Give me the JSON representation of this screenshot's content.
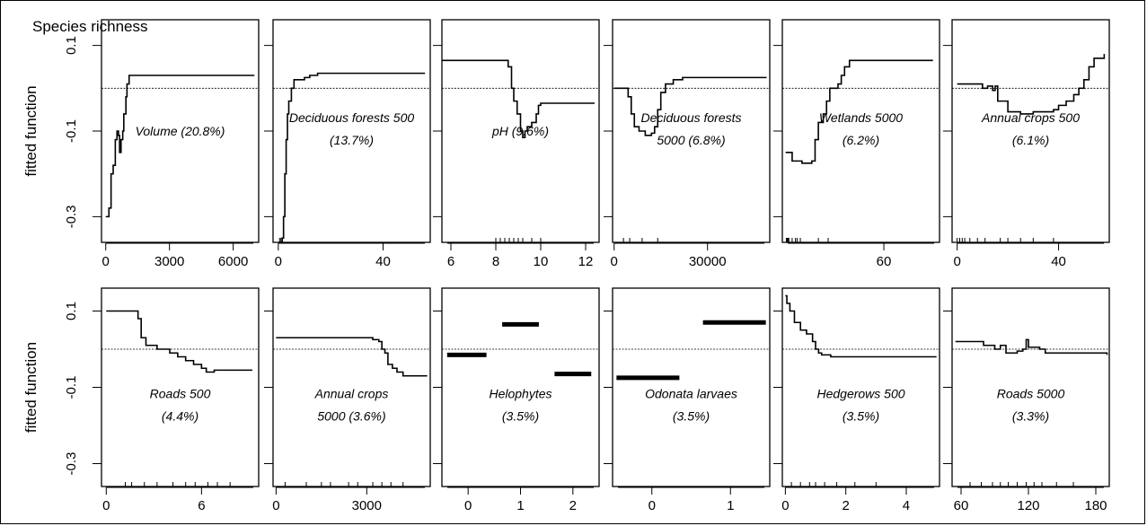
{
  "title": "Species richness",
  "chart_data": {
    "type": "line",
    "title": "Species richness",
    "ylabel": "fitted function",
    "ylim": [
      -0.36,
      0.16
    ],
    "yticks": [
      0.1,
      -0.1,
      -0.3
    ],
    "reference_line": 0,
    "panels": [
      {
        "label_lines": [
          "Volume (20.8%)"
        ],
        "xlim": [
          -200,
          7200
        ],
        "xticks": [
          0,
          3000,
          6000
        ],
        "line": [
          [
            0,
            -0.3
          ],
          [
            150,
            -0.28
          ],
          [
            250,
            -0.2
          ],
          [
            350,
            -0.18
          ],
          [
            450,
            -0.12
          ],
          [
            530,
            -0.1
          ],
          [
            600,
            -0.11
          ],
          [
            650,
            -0.15
          ],
          [
            720,
            -0.12
          ],
          [
            800,
            -0.1
          ],
          [
            850,
            -0.06
          ],
          [
            950,
            -0.02
          ],
          [
            1000,
            0.01
          ],
          [
            1100,
            0.03
          ],
          [
            2000,
            0.03
          ],
          [
            7000,
            0.03
          ]
        ],
        "rug": []
      },
      {
        "label_lines": [
          "Deciduous forests 500",
          "(13.7%)"
        ],
        "xlim": [
          -2,
          58
        ],
        "xticks": [
          0,
          40
        ],
        "line": [
          [
            0,
            -0.36
          ],
          [
            1,
            -0.36
          ],
          [
            1.5,
            -0.35
          ],
          [
            2,
            -0.3
          ],
          [
            2.5,
            -0.2
          ],
          [
            3,
            -0.12
          ],
          [
            3.5,
            -0.06
          ],
          [
            4,
            -0.03
          ],
          [
            5,
            0.0
          ],
          [
            6,
            0.02
          ],
          [
            8,
            0.02
          ],
          [
            10,
            0.025
          ],
          [
            12,
            0.03
          ],
          [
            15,
            0.035
          ],
          [
            56,
            0.035
          ]
        ],
        "rug": [
          0.5,
          1
        ]
      },
      {
        "label_lines": [
          "pH (9.6%)"
        ],
        "xlim": [
          5.6,
          12.6
        ],
        "xticks": [
          6,
          8,
          10,
          12
        ],
        "line": [
          [
            5.6,
            0.065
          ],
          [
            8.4,
            0.065
          ],
          [
            8.55,
            0.05
          ],
          [
            8.7,
            0.0
          ],
          [
            8.8,
            -0.03
          ],
          [
            8.95,
            -0.06
          ],
          [
            9.1,
            -0.1
          ],
          [
            9.2,
            -0.115
          ],
          [
            9.3,
            -0.1
          ],
          [
            9.4,
            -0.09
          ],
          [
            9.6,
            -0.08
          ],
          [
            9.8,
            -0.06
          ],
          [
            9.9,
            -0.04
          ],
          [
            10.0,
            -0.035
          ],
          [
            12.4,
            -0.035
          ]
        ],
        "rug": [
          8.0,
          8.2,
          8.4,
          8.6,
          8.8,
          9.0,
          9.2,
          9.6,
          10.0
        ]
      },
      {
        "label_lines": [
          "Deciduous forests",
          "5000 (6.8%)"
        ],
        "xlim": [
          -500,
          50000
        ],
        "xticks": [
          0,
          30000
        ],
        "line": [
          [
            0,
            0.0
          ],
          [
            3000,
            0.0
          ],
          [
            4500,
            -0.02
          ],
          [
            5500,
            -0.06
          ],
          [
            6500,
            -0.09
          ],
          [
            8000,
            -0.1
          ],
          [
            10000,
            -0.11
          ],
          [
            12000,
            -0.105
          ],
          [
            13000,
            -0.09
          ],
          [
            14000,
            -0.05
          ],
          [
            15000,
            -0.01
          ],
          [
            16500,
            0.01
          ],
          [
            19000,
            0.02
          ],
          [
            22000,
            0.025
          ],
          [
            49000,
            0.025
          ]
        ],
        "rug": [
          3000,
          5000,
          9000,
          14000
        ]
      },
      {
        "label_lines": [
          "Wetlands 5000",
          "(6.2%)"
        ],
        "xlim": [
          -2,
          94
        ],
        "xticks": [
          60
        ],
        "line": [
          [
            0,
            -0.15
          ],
          [
            3,
            -0.15
          ],
          [
            4,
            -0.17
          ],
          [
            8,
            -0.17
          ],
          [
            10,
            -0.175
          ],
          [
            14,
            -0.175
          ],
          [
            16,
            -0.17
          ],
          [
            18,
            -0.12
          ],
          [
            20,
            -0.08
          ],
          [
            23,
            -0.06
          ],
          [
            25,
            -0.03
          ],
          [
            27,
            0.0
          ],
          [
            30,
            0.0
          ],
          [
            32,
            0.01
          ],
          [
            34,
            0.03
          ],
          [
            36,
            0.05
          ],
          [
            39,
            0.065
          ],
          [
            42,
            0.065
          ],
          [
            80,
            0.065
          ],
          [
            90,
            0.065
          ]
        ],
        "rug": [
          0.5,
          1,
          1.5,
          2,
          4,
          6,
          7,
          9,
          20,
          26
        ]
      },
      {
        "label_lines": [
          "Annual crops 500",
          "(6.1%)"
        ],
        "xlim": [
          -2,
          60
        ],
        "xticks": [
          0,
          40
        ],
        "line": [
          [
            0,
            0.01
          ],
          [
            8,
            0.01
          ],
          [
            10,
            0.0
          ],
          [
            12,
            0.005
          ],
          [
            14,
            -0.005
          ],
          [
            15,
            0.005
          ],
          [
            16,
            -0.03
          ],
          [
            20,
            -0.055
          ],
          [
            25,
            -0.06
          ],
          [
            30,
            -0.055
          ],
          [
            38,
            -0.05
          ],
          [
            40,
            -0.04
          ],
          [
            43,
            -0.03
          ],
          [
            46,
            -0.015
          ],
          [
            48,
            0.0
          ],
          [
            50,
            0.02
          ],
          [
            52,
            0.05
          ],
          [
            54,
            0.07
          ],
          [
            58,
            0.08
          ]
        ],
        "rug": [
          0,
          1,
          2,
          3,
          5,
          8,
          11,
          17,
          20,
          25,
          30,
          38
        ]
      },
      {
        "label_lines": [
          "Roads 500",
          "(4.4%)"
        ],
        "xlim": [
          -0.3,
          9.6
        ],
        "xticks": [
          0,
          6
        ],
        "line": [
          [
            0,
            0.1
          ],
          [
            1.8,
            0.1
          ],
          [
            2.0,
            0.08
          ],
          [
            2.2,
            0.03
          ],
          [
            2.5,
            0.01
          ],
          [
            3,
            0.01
          ],
          [
            3.2,
            0.0
          ],
          [
            3.8,
            0.0
          ],
          [
            4.0,
            -0.01
          ],
          [
            4.5,
            -0.02
          ],
          [
            5,
            -0.03
          ],
          [
            5.5,
            -0.04
          ],
          [
            6.0,
            -0.05
          ],
          [
            6.3,
            -0.06
          ],
          [
            6.8,
            -0.055
          ],
          [
            9.2,
            -0.055
          ]
        ],
        "rug": [
          1.2,
          1.6,
          2.4,
          3.2,
          4.2,
          5.0,
          5.6,
          6.4,
          7.0,
          7.8
        ]
      },
      {
        "label_lines": [
          "Annual crops",
          "5000 (3.6%)"
        ],
        "xlim": [
          -100,
          5100
        ],
        "xticks": [
          0,
          3000
        ],
        "line": [
          [
            0,
            0.03
          ],
          [
            3000,
            0.03
          ],
          [
            3200,
            0.025
          ],
          [
            3400,
            0.02
          ],
          [
            3500,
            0.0
          ],
          [
            3600,
            -0.01
          ],
          [
            3700,
            -0.04
          ],
          [
            3850,
            -0.05
          ],
          [
            4000,
            -0.06
          ],
          [
            4200,
            -0.07
          ],
          [
            5000,
            -0.07
          ]
        ],
        "rug": [
          300,
          1000,
          1500,
          1800,
          2400,
          2700,
          3200,
          3500,
          3800,
          4200
        ]
      },
      {
        "label_lines": [
          "Helophytes",
          "(3.5%)"
        ],
        "xlim": [
          -0.5,
          2.5
        ],
        "xticks": [
          0,
          1,
          2
        ],
        "segments": [
          [
            [
              -0.4,
              -0.015
            ],
            [
              0.35,
              -0.015
            ]
          ],
          [
            [
              0.65,
              0.065
            ],
            [
              1.35,
              0.065
            ]
          ],
          [
            [
              1.65,
              -0.065
            ],
            [
              2.35,
              -0.065
            ]
          ]
        ],
        "rug": []
      },
      {
        "label_lines": [
          "Odonata larvaes",
          "(3.5%)"
        ],
        "xlim": [
          -0.5,
          1.5
        ],
        "xticks": [
          0,
          1
        ],
        "segments": [
          [
            [
              -0.45,
              -0.075
            ],
            [
              0.35,
              -0.075
            ]
          ],
          [
            [
              0.65,
              0.07
            ],
            [
              1.45,
              0.07
            ]
          ]
        ],
        "rug": []
      },
      {
        "label_lines": [
          "Hedgerows 500",
          "(3.5%)"
        ],
        "xlim": [
          -0.1,
          5.1
        ],
        "xticks": [
          0,
          2,
          4
        ],
        "line": [
          [
            0,
            0.14
          ],
          [
            0.05,
            0.12
          ],
          [
            0.15,
            0.1
          ],
          [
            0.3,
            0.07
          ],
          [
            0.5,
            0.05
          ],
          [
            0.7,
            0.04
          ],
          [
            0.9,
            0.02
          ],
          [
            1.0,
            0.0
          ],
          [
            1.1,
            -0.01
          ],
          [
            1.2,
            -0.015
          ],
          [
            1.5,
            -0.02
          ],
          [
            5,
            -0.02
          ]
        ],
        "rug": [
          0.2,
          0.5,
          0.8,
          1.0,
          1.3,
          1.7,
          2.3,
          3.0
        ]
      },
      {
        "label_lines": [
          "Roads 5000",
          "(3.3%)"
        ],
        "xlim": [
          52,
          192
        ],
        "xticks": [
          60,
          120,
          180
        ],
        "line": [
          [
            55,
            0.02
          ],
          [
            75,
            0.02
          ],
          [
            80,
            0.01
          ],
          [
            90,
            0.0
          ],
          [
            95,
            0.01
          ],
          [
            100,
            -0.01
          ],
          [
            105,
            -0.01
          ],
          [
            110,
            -0.005
          ],
          [
            115,
            0.0
          ],
          [
            118,
            0.025
          ],
          [
            120,
            0.005
          ],
          [
            125,
            0.005
          ],
          [
            130,
            0.0
          ],
          [
            135,
            -0.01
          ],
          [
            190,
            -0.015
          ]
        ],
        "rug": [
          68,
          78,
          88,
          95,
          102,
          110,
          118,
          125,
          132,
          145,
          160
        ]
      }
    ]
  }
}
